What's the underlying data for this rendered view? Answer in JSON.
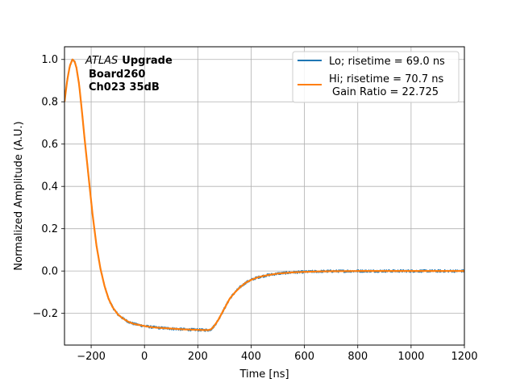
{
  "chart_data": {
    "type": "line",
    "title": "",
    "xlabel": "Time [ns]",
    "ylabel": "Normalized Amplitude (A.U.)",
    "xlim": [
      -300,
      1200
    ],
    "ylim": [
      -0.35,
      1.06
    ],
    "xticks": [
      -200,
      0,
      200,
      400,
      600,
      800,
      1000,
      1200
    ],
    "yticks": [
      -0.2,
      0.0,
      0.2,
      0.4,
      0.6,
      0.8,
      1.0
    ],
    "xtick_labels": [
      "−200",
      "0",
      "200",
      "400",
      "600",
      "800",
      "1000",
      "1200"
    ],
    "ytick_labels": [
      "−0.2",
      "0.0",
      "0.2",
      "0.4",
      "0.6",
      "0.8",
      "1.0"
    ],
    "grid": true,
    "legend_position": "top-right",
    "annotation": {
      "line1_italic": "ATLAS",
      "line1_bold": "Upgrade",
      "line2": "Board260",
      "line3": "Ch023 35dB"
    },
    "series": [
      {
        "name": "Lo; risetime = 69.0 ns",
        "color": "#1f77b4",
        "noise": 0.006,
        "x": [
          -300,
          -290,
          -280,
          -270,
          -262,
          -255,
          -245,
          -235,
          -225,
          -210,
          -195,
          -180,
          -165,
          -150,
          -135,
          -120,
          -100,
          -80,
          -60,
          -40,
          -20,
          0,
          25,
          50,
          75,
          100,
          125,
          150,
          175,
          200,
          220,
          240,
          250,
          260,
          275,
          290,
          305,
          320,
          340,
          360,
          380,
          400,
          420,
          440,
          460,
          480,
          500,
          530,
          560,
          600,
          650,
          700,
          800,
          900,
          1000,
          1100,
          1200
        ],
        "y": [
          0.8,
          0.9,
          0.97,
          1.0,
          0.99,
          0.96,
          0.88,
          0.76,
          0.63,
          0.45,
          0.27,
          0.12,
          0.01,
          -0.07,
          -0.13,
          -0.17,
          -0.205,
          -0.225,
          -0.24,
          -0.25,
          -0.255,
          -0.26,
          -0.265,
          -0.268,
          -0.27,
          -0.272,
          -0.274,
          -0.276,
          -0.277,
          -0.278,
          -0.279,
          -0.279,
          -0.275,
          -0.262,
          -0.235,
          -0.2,
          -0.165,
          -0.13,
          -0.1,
          -0.075,
          -0.055,
          -0.042,
          -0.032,
          -0.025,
          -0.02,
          -0.016,
          -0.012,
          -0.009,
          -0.006,
          -0.004,
          -0.002,
          -0.001,
          0.0,
          0.0,
          0.0,
          0.0,
          0.0
        ]
      },
      {
        "name": "Hi; risetime = 70.7 ns",
        "name2": "Gain Ratio = 22.725",
        "color": "#ff7f0e",
        "noise": 0.0,
        "x": [
          -300,
          -290,
          -280,
          -270,
          -262,
          -255,
          -245,
          -235,
          -225,
          -210,
          -195,
          -180,
          -165,
          -150,
          -135,
          -120,
          -100,
          -80,
          -60,
          -40,
          -20,
          0,
          25,
          50,
          75,
          100,
          125,
          150,
          175,
          200,
          220,
          240,
          250,
          260,
          275,
          290,
          305,
          320,
          340,
          360,
          380,
          400,
          420,
          440,
          460,
          480,
          500,
          530,
          560,
          600,
          650,
          700,
          800,
          900,
          1000,
          1100,
          1200
        ],
        "y": [
          0.8,
          0.9,
          0.97,
          1.0,
          0.99,
          0.96,
          0.88,
          0.76,
          0.63,
          0.45,
          0.27,
          0.12,
          0.01,
          -0.07,
          -0.13,
          -0.17,
          -0.205,
          -0.225,
          -0.24,
          -0.25,
          -0.255,
          -0.26,
          -0.265,
          -0.268,
          -0.27,
          -0.272,
          -0.274,
          -0.276,
          -0.277,
          -0.278,
          -0.279,
          -0.279,
          -0.275,
          -0.262,
          -0.235,
          -0.2,
          -0.165,
          -0.13,
          -0.1,
          -0.075,
          -0.055,
          -0.042,
          -0.032,
          -0.025,
          -0.02,
          -0.016,
          -0.012,
          -0.009,
          -0.006,
          -0.004,
          -0.002,
          -0.001,
          0.0,
          0.0,
          0.0,
          0.0,
          0.0
        ]
      }
    ]
  }
}
